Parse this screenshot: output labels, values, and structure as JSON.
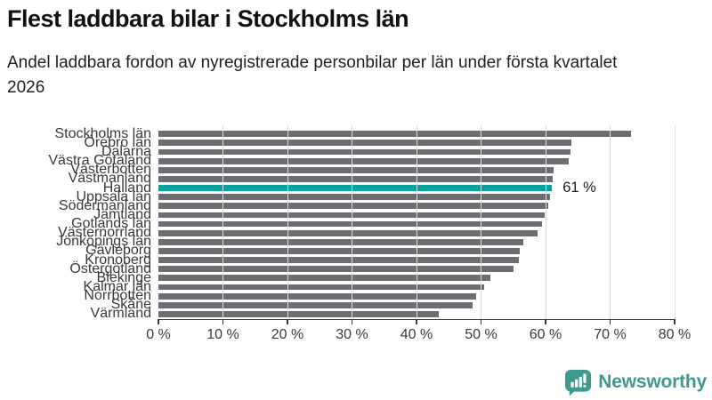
{
  "chart_data": {
    "type": "bar",
    "orientation": "horizontal",
    "title": "Flest laddbara bilar i Stockholms län",
    "subtitle": "Andel laddbara fordon av nyregistrerade personbilar per län under första kvartalet 2026",
    "categories": [
      "Stockholms län",
      "Örebro län",
      "Dalarna",
      "Västra Götaland",
      "Västerbotten",
      "Västmanland",
      "Halland",
      "Uppsala län",
      "Södermanland",
      "Jämtland",
      "Gotlands län",
      "Västernorrland",
      "Jönköpings län",
      "Gävleborg",
      "Kronoberg",
      "Östergötland",
      "Blekinge",
      "Kalmar län",
      "Norrbotten",
      "Skåne",
      "Värmland"
    ],
    "values": [
      73.2,
      64.0,
      63.9,
      63.6,
      61.2,
      61.1,
      61.0,
      60.7,
      60.4,
      59.8,
      59.5,
      58.8,
      56.6,
      56.0,
      55.9,
      55.0,
      51.5,
      50.5,
      49.2,
      48.7,
      43.4
    ],
    "highlight": {
      "index": 6,
      "category": "Halland",
      "label": "61 %",
      "color": "#0aa19c"
    },
    "bar_color": "#6d6d72",
    "xlim": [
      0,
      80
    ],
    "x_ticks": [
      "0 %",
      "10 %",
      "20 %",
      "30 %",
      "40 %",
      "50 %",
      "60 %",
      "70 %",
      "80 %"
    ],
    "grid": true,
    "gridline_color": "#dcdcdc",
    "axis_color": "#3a3a3a",
    "label_color": "#3a3a3a",
    "annotation_color": "#1e1e1e"
  },
  "footer": {
    "brand": "Newsworthy",
    "brand_color": "#3e9a8c",
    "logo_icon": "bar-chart-speech-bubble-icon"
  }
}
